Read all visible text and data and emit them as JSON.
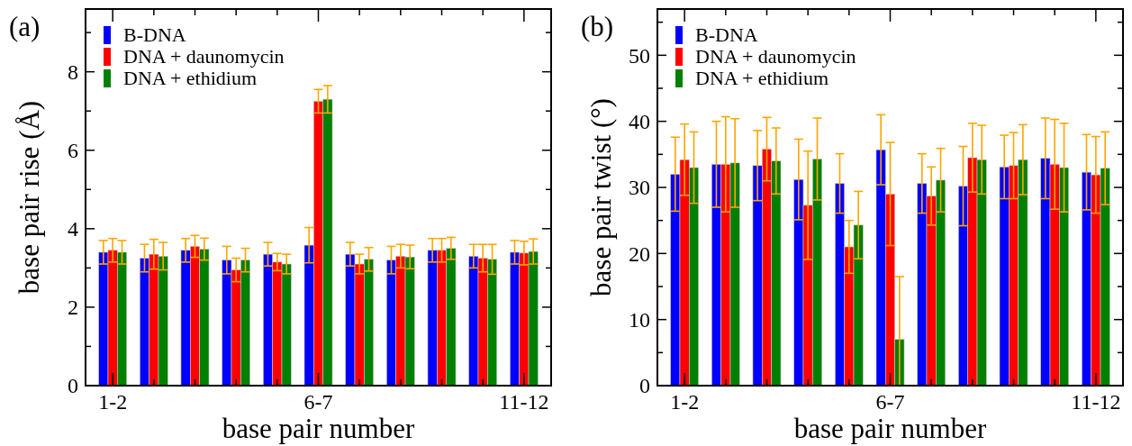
{
  "chart_data": [
    {
      "type": "bar",
      "title": "(a)",
      "xlabel": "base pair number",
      "ylabel": "base pair rise (Å)",
      "categories": [
        "1-2",
        null,
        null,
        null,
        null,
        "6-7",
        null,
        null,
        null,
        null,
        "11-12"
      ],
      "ylim": [
        0,
        9.6
      ],
      "yticks": [
        0,
        {
          "value": 1,
          "label": null
        },
        2,
        {
          "value": 3,
          "label": null
        },
        4,
        {
          "value": 5,
          "label": null
        },
        6,
        {
          "value": 7,
          "label": null
        },
        8,
        {
          "value": 9,
          "label": null
        }
      ],
      "legend": "top left",
      "series": [
        {
          "name": "B-DNA",
          "color": "#0000ff",
          "values": [
            3.4,
            3.25,
            3.45,
            3.2,
            3.35,
            3.58,
            3.35,
            3.2,
            3.45,
            3.3,
            3.4
          ],
          "errors": [
            0.3,
            0.35,
            0.3,
            0.35,
            0.3,
            0.45,
            0.3,
            0.35,
            0.3,
            0.3,
            0.3
          ]
        },
        {
          "name": "DNA + daunomycin",
          "color": "#ff0000",
          "values": [
            3.45,
            3.35,
            3.55,
            2.95,
            3.15,
            7.25,
            3.1,
            3.3,
            3.45,
            3.25,
            3.38
          ],
          "errors": [
            0.3,
            0.38,
            0.28,
            0.3,
            0.22,
            0.3,
            0.25,
            0.3,
            0.3,
            0.35,
            0.3
          ]
        },
        {
          "name": "DNA + ethidium",
          "color": "#008000",
          "values": [
            3.4,
            3.3,
            3.48,
            3.2,
            3.1,
            7.3,
            3.22,
            3.28,
            3.5,
            3.22,
            3.42
          ],
          "errors": [
            0.3,
            0.35,
            0.28,
            0.3,
            0.25,
            0.35,
            0.3,
            0.3,
            0.28,
            0.38,
            0.32
          ]
        }
      ]
    },
    {
      "type": "bar",
      "title": "(b)",
      "xlabel": "base pair number",
      "ylabel": "base pair twist (°)",
      "categories": [
        "1-2",
        null,
        null,
        null,
        null,
        "6-7",
        null,
        null,
        null,
        null,
        "11-12"
      ],
      "ylim": [
        0,
        57
      ],
      "yticks": [
        0,
        {
          "value": 5,
          "label": null
        },
        10,
        {
          "value": 15,
          "label": null
        },
        20,
        {
          "value": 25,
          "label": null
        },
        30,
        {
          "value": 35,
          "label": null
        },
        40,
        {
          "value": 45,
          "label": null
        },
        50,
        {
          "value": 55,
          "label": null
        }
      ],
      "legend": "top left",
      "series": [
        {
          "name": "B-DNA",
          "color": "#0000ff",
          "values": [
            32,
            33.5,
            33.3,
            31.2,
            30.6,
            35.7,
            30.6,
            30.2,
            33.1,
            34.4,
            32.3
          ],
          "errors": [
            5.6,
            6.5,
            5.3,
            6.1,
            4.5,
            5.3,
            4.5,
            6,
            4.8,
            6.1,
            5.7
          ]
        },
        {
          "name": "DNA + daunomycin",
          "color": "#ff0000",
          "values": [
            34.2,
            33.5,
            35.8,
            27.3,
            21,
            29,
            28.7,
            34.5,
            33.3,
            33.5,
            31.9
          ],
          "errors": [
            5.4,
            7.2,
            4.8,
            8.2,
            4,
            7.8,
            4.4,
            5.2,
            5,
            6.8,
            5.8
          ]
        },
        {
          "name": "DNA + ethidium",
          "color": "#008000",
          "values": [
            33,
            33.7,
            34,
            34.3,
            24.3,
            7,
            31.1,
            34.2,
            34.2,
            33,
            32.9
          ],
          "errors": [
            5.4,
            6.7,
            5,
            6.2,
            5.1,
            [
              0,
              16.5
            ],
            4.8,
            5.2,
            5.3,
            6.7,
            5.5
          ]
        }
      ]
    }
  ]
}
